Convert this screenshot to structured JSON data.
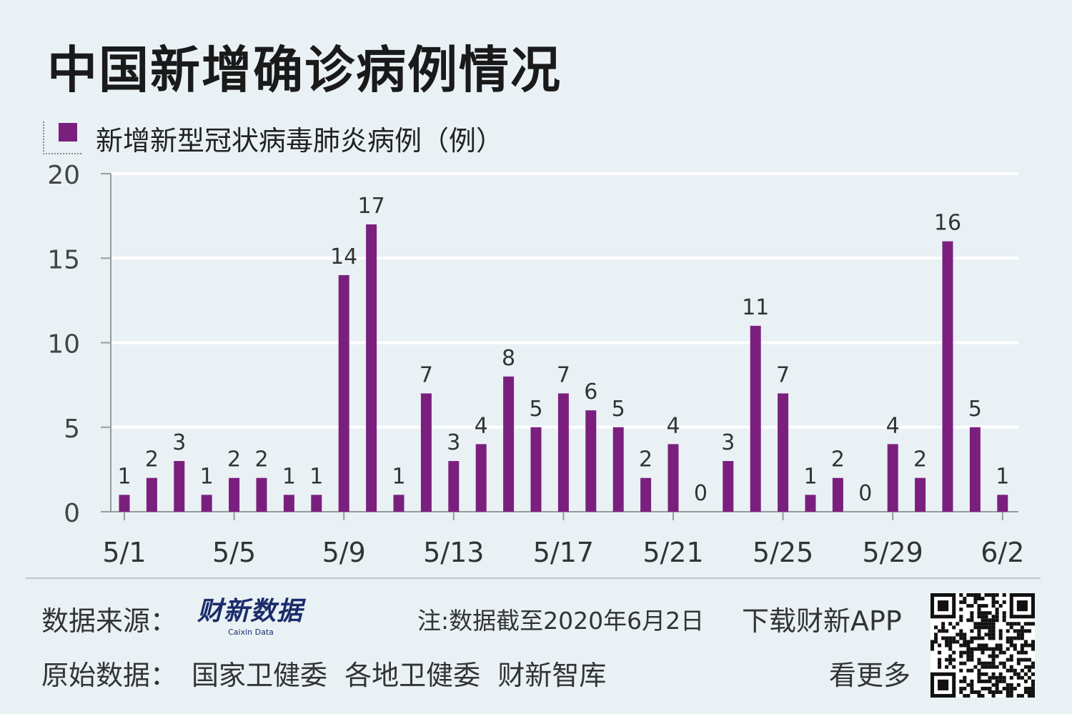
{
  "header": {
    "title": "中国新增确诊病例情况"
  },
  "colors": {
    "bar": "#7b1f7f",
    "background": "#e9f1f5",
    "grid": "#ffffff",
    "axis": "#9a9a9a"
  },
  "chart_data": {
    "type": "bar",
    "legend": "新增新型冠状病毒肺炎病例（例）",
    "categories": [
      "5/1",
      "5/2",
      "5/3",
      "5/4",
      "5/5",
      "5/6",
      "5/7",
      "5/8",
      "5/9",
      "5/10",
      "5/11",
      "5/12",
      "5/13",
      "5/14",
      "5/15",
      "5/16",
      "5/17",
      "5/18",
      "5/19",
      "5/20",
      "5/21",
      "5/22",
      "5/23",
      "5/24",
      "5/25",
      "5/26",
      "5/27",
      "5/28",
      "5/29",
      "5/30",
      "5/31",
      "6/1",
      "6/2"
    ],
    "values": [
      1,
      2,
      3,
      1,
      2,
      2,
      1,
      1,
      14,
      17,
      1,
      7,
      3,
      4,
      8,
      5,
      7,
      6,
      5,
      2,
      4,
      0,
      3,
      11,
      7,
      1,
      2,
      0,
      4,
      2,
      16,
      5,
      1
    ],
    "x_tick_labels": [
      "5/1",
      "5/5",
      "5/9",
      "5/13",
      "5/17",
      "5/21",
      "5/25",
      "5/29",
      "6/2"
    ],
    "y_ticks": [
      "0",
      "5",
      "10",
      "15",
      "20"
    ],
    "ylim": [
      0,
      20
    ],
    "grid": true,
    "legend_position": "top-left"
  },
  "footer": {
    "source_label": "数据来源：",
    "source_logo_main": "财新数据",
    "source_logo_sub": "Caixin Data",
    "raw_label": "原始数据：",
    "raw_sources": "国家卫健委  各地卫健委  财新智库",
    "note": "注:数据截至2020年6月2日",
    "download": "下载财新APP",
    "more": "看更多"
  },
  "icons": {
    "qr": "qr-code-icon"
  }
}
